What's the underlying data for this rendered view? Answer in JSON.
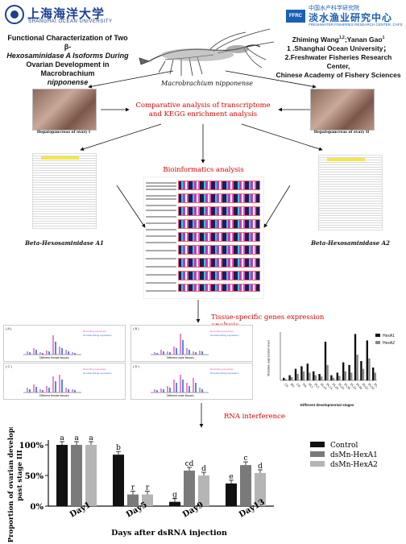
{
  "logos": {
    "left_cn": "上海海洋大学",
    "left_en": "SHANGHAI OCEAN UNIVERSITY",
    "right_small": "中国水产科学研究院",
    "right_tag": "FFRC",
    "right_cn": "淡水渔业研究中心",
    "right_en": "FRESHWATER FISHERIES RESEARCH CENTER, CAFS"
  },
  "title": {
    "line1": "Functional Characterization of Two β-",
    "line2": "Hexosaminidase A Isoforms During",
    "line3": "Ovarian Development in Macrobrachium",
    "line4": "nipponense"
  },
  "authors": {
    "names": "Zhiming Wang",
    "names_sup": "1,2",
    "names_mid": ";Yanan Gao",
    "names_sup2": "1",
    "aff1": "1 .Shanghai Ocean University；",
    "aff2": "2.Freshwater Fisheries Research Center,",
    "aff3": "Chinese Academy of Fishery Sciences"
  },
  "shrimp_label": "Macrobrachium nipponense",
  "flow": {
    "comparative_l1": "Comparative analysis of transcriptome",
    "comparative_l2": "and KEGG enrichment analysis",
    "photo_left_caption": "Hepatopancreas of ovary I",
    "photo_right_caption": "Hepatopancreas of ovary II",
    "bioinformatics": "Bioinformatics analysis",
    "hexA1": "Beta-Hexosaminidase A1",
    "hexA2": "Beta-Hexosaminidase A2",
    "tissue": "Tissue-specific genes expression analysis",
    "rnai": "RNA interference"
  },
  "small_plots": {
    "labels": [
      "( A )",
      "( B )",
      "( C )",
      "( D )"
    ],
    "legend1": "Recording expression",
    "legend2": "Non-Recording expression",
    "xlabel_a": "Different female tissues",
    "xlabel_b": "Different male tissues"
  },
  "stage_chart": {
    "ylabel": "Relative expression level",
    "xlabel": "Different developmental stages",
    "legend": [
      "HexA1",
      "HexA2"
    ],
    "categories": [
      "CS",
      "BG",
      "GS",
      "NS",
      "PL1",
      "PL5",
      "PL10",
      "PL15",
      "PL20",
      "PL25",
      "PL30",
      "PL35",
      "PL40",
      "PL45",
      "PL50",
      "PL55"
    ],
    "colors": [
      "#111111",
      "#888888"
    ]
  },
  "chart_data": {
    "type": "bar",
    "ylabel": "Proportion of ovarian development past stage III",
    "xlabel": "Days after dsRNA injection",
    "categories": [
      "Day1",
      "Day5",
      "Day9",
      "Day13"
    ],
    "yticks": [
      "0%",
      "50%",
      "100%"
    ],
    "ylim": [
      0,
      100
    ],
    "legend_position": "right",
    "series": [
      {
        "name": "Control",
        "color": "#111111",
        "values": [
          100,
          84,
          7,
          37
        ],
        "letters": [
          "a",
          "b",
          "g",
          "e"
        ]
      },
      {
        "name": "dsMn-HexA1",
        "color": "#7a7a7a",
        "values": [
          100,
          19,
          58,
          67
        ],
        "letters": [
          "a",
          "r",
          "cd",
          "c"
        ]
      },
      {
        "name": "dsMn-HexA2",
        "color": "#b5b5b5",
        "values": [
          100,
          19,
          50,
          54
        ],
        "letters": [
          "a",
          "r",
          "d",
          "d"
        ]
      }
    ]
  }
}
